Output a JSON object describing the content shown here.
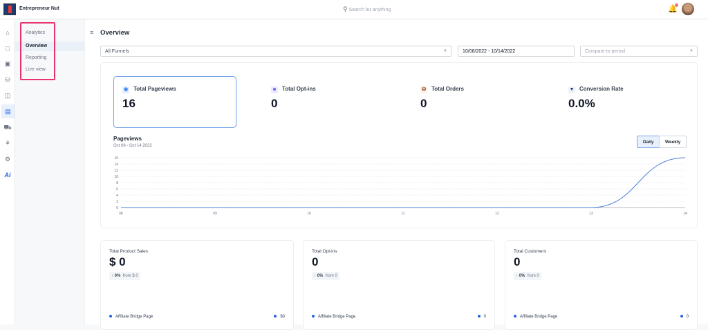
{
  "app": {
    "brand": "Entrepreneur Nut",
    "search_placeholder": "Search for anything"
  },
  "subnav": {
    "heading": "Analytics",
    "items": [
      {
        "label": "Overview",
        "active": true
      },
      {
        "label": "Reporting"
      },
      {
        "label": "Live view"
      }
    ]
  },
  "rail_icons": [
    "home-icon",
    "window-icon",
    "box-icon",
    "cart-icon",
    "layout-icon",
    "analytics-icon",
    "truck-icon",
    "plant-icon",
    "settings-icon",
    "ai-icon"
  ],
  "page": {
    "title": "Overview"
  },
  "filters": {
    "funnel": "All Funnels",
    "date_range": "10/08/2022 - 10/14/2022",
    "compare_placeholder": "Compare to period"
  },
  "stats": [
    {
      "label": "Total Pageviews",
      "value": "16",
      "icon": "eye-icon",
      "selected": true
    },
    {
      "label": "Total Opt-ins",
      "value": "0",
      "icon": "user-plus-icon"
    },
    {
      "label": "Total Orders",
      "value": "0",
      "icon": "cart-icon"
    },
    {
      "label": "Conversion Rate",
      "value": "0.0%",
      "icon": "filter-icon"
    }
  ],
  "chart_toggle": {
    "daily": "Daily",
    "weekly": "Weekly",
    "selected": "Daily"
  },
  "chart_data": {
    "type": "line",
    "title": "Pageviews",
    "subtitle": "Oct 08 - Oct 14 2022",
    "categories": [
      "08",
      "09",
      "10",
      "11",
      "12",
      "13",
      "14"
    ],
    "values": [
      0,
      0,
      0,
      0,
      0,
      0,
      16
    ],
    "yticks": [
      "0",
      "2",
      "4",
      "6",
      "8",
      "10",
      "12",
      "14",
      "16"
    ],
    "ylim": [
      0,
      16
    ],
    "grid": true,
    "color": "#4a7fd6"
  },
  "bottom_cards": [
    {
      "label": "Total Product Sales",
      "value": "$ 0",
      "change": "0%",
      "from": "from $ 0",
      "row_label": "Affiliate Bridge Page",
      "row_value": "$0"
    },
    {
      "label": "Total Opt-ins",
      "value": "0",
      "change": "0%",
      "from": "from 0",
      "row_label": "Affiliate Bridge Page",
      "row_value": "0"
    },
    {
      "label": "Total Customers",
      "value": "0",
      "change": "0%",
      "from": "from 0",
      "row_label": "Affiliate Bridge Page",
      "row_value": "0"
    }
  ]
}
